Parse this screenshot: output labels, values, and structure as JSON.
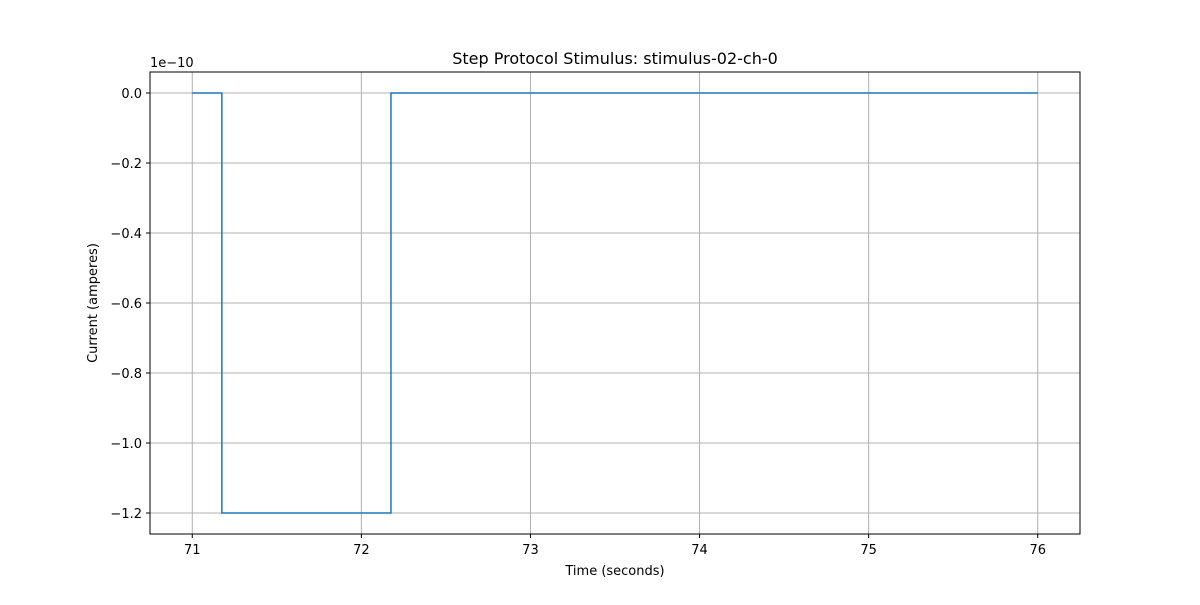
{
  "chart_data": {
    "type": "line",
    "title": "Step Protocol Stimulus: stimulus-02-ch-0",
    "xlabel": "Time (seconds)",
    "ylabel": "Current (amperes)",
    "y_offset_label": "1e−10",
    "y_scale_exponent": -10,
    "xlim": [
      70.75,
      76.25
    ],
    "ylim": [
      -1.26,
      0.06
    ],
    "x_ticks": [
      71,
      72,
      73,
      74,
      75,
      76
    ],
    "x_tick_labels": [
      "71",
      "72",
      "73",
      "74",
      "75",
      "76"
    ],
    "y_ticks": [
      0.0,
      -0.2,
      -0.4,
      -0.6,
      -0.8,
      -1.0,
      -1.2
    ],
    "y_tick_labels": [
      "0.0",
      "−0.2",
      "−0.4",
      "−0.6",
      "−0.8",
      "−1.0",
      "−1.2"
    ],
    "grid": true,
    "legend": "none",
    "series": [
      {
        "color": "#1f77b4",
        "x": [
          71.0,
          71.175,
          71.175,
          72.175,
          72.175,
          76.0
        ],
        "y": [
          0.0,
          0.0,
          -1.2,
          -1.2,
          0.0,
          0.0
        ]
      }
    ],
    "colors": {
      "grid": "#b0b0b0",
      "axes": "#000000"
    }
  }
}
